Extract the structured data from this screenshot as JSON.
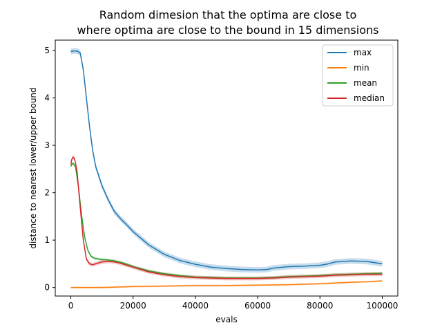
{
  "chart_data": {
    "type": "line",
    "title_line1": "Random dimesion that the optima are close to",
    "title_line2": "where optima are close to the bound in 15 dimensions",
    "xlabel": "evals",
    "ylabel": "distance to nearest lower/upper bound",
    "xlim": [
      -5000,
      105000
    ],
    "ylim": [
      -0.18,
      5.22
    ],
    "x_ticks": [
      0,
      20000,
      40000,
      60000,
      80000,
      100000
    ],
    "x_tick_labels": [
      "0",
      "20000",
      "40000",
      "60000",
      "80000",
      "100000"
    ],
    "y_ticks": [
      0,
      1,
      2,
      3,
      4,
      5
    ],
    "y_tick_labels": [
      "0",
      "1",
      "2",
      "3",
      "4",
      "5"
    ],
    "grid": false,
    "legend_position": "top-right",
    "series": [
      {
        "name": "max",
        "color": "#1f77b4",
        "band": 0.06,
        "points": [
          [
            0,
            4.98
          ],
          [
            1000,
            4.99
          ],
          [
            2000,
            4.99
          ],
          [
            3000,
            4.95
          ],
          [
            4000,
            4.6
          ],
          [
            5000,
            4.0
          ],
          [
            6000,
            3.4
          ],
          [
            7000,
            2.9
          ],
          [
            8000,
            2.55
          ],
          [
            10000,
            2.15
          ],
          [
            12000,
            1.85
          ],
          [
            14000,
            1.6
          ],
          [
            16000,
            1.45
          ],
          [
            18000,
            1.32
          ],
          [
            20000,
            1.18
          ],
          [
            25000,
            0.9
          ],
          [
            30000,
            0.7
          ],
          [
            35000,
            0.57
          ],
          [
            40000,
            0.49
          ],
          [
            45000,
            0.43
          ],
          [
            50000,
            0.4
          ],
          [
            55000,
            0.38
          ],
          [
            60000,
            0.37
          ],
          [
            63000,
            0.38
          ],
          [
            65000,
            0.41
          ],
          [
            70000,
            0.44
          ],
          [
            75000,
            0.45
          ],
          [
            80000,
            0.47
          ],
          [
            82000,
            0.49
          ],
          [
            85000,
            0.54
          ],
          [
            90000,
            0.56
          ],
          [
            95000,
            0.55
          ],
          [
            100000,
            0.5
          ]
        ]
      },
      {
        "name": "min",
        "color": "#ff7f0e",
        "band": 0.02,
        "points": [
          [
            0,
            0.0
          ],
          [
            10000,
            0.0
          ],
          [
            15000,
            0.01
          ],
          [
            20000,
            0.02
          ],
          [
            30000,
            0.03
          ],
          [
            40000,
            0.04
          ],
          [
            50000,
            0.04
          ],
          [
            60000,
            0.05
          ],
          [
            70000,
            0.06
          ],
          [
            80000,
            0.08
          ],
          [
            90000,
            0.11
          ],
          [
            95000,
            0.12
          ],
          [
            100000,
            0.14
          ]
        ]
      },
      {
        "name": "mean",
        "color": "#2ca02c",
        "band": 0.03,
        "points": [
          [
            0,
            2.55
          ],
          [
            300,
            2.6
          ],
          [
            700,
            2.62
          ],
          [
            1500,
            2.55
          ],
          [
            2500,
            2.1
          ],
          [
            3500,
            1.5
          ],
          [
            4500,
            1.05
          ],
          [
            5500,
            0.78
          ],
          [
            6500,
            0.66
          ],
          [
            7500,
            0.62
          ],
          [
            9000,
            0.6
          ],
          [
            10000,
            0.59
          ],
          [
            12000,
            0.58
          ],
          [
            14000,
            0.56
          ],
          [
            16000,
            0.53
          ],
          [
            18000,
            0.49
          ],
          [
            20000,
            0.44
          ],
          [
            25000,
            0.35
          ],
          [
            30000,
            0.29
          ],
          [
            35000,
            0.25
          ],
          [
            40000,
            0.22
          ],
          [
            45000,
            0.21
          ],
          [
            50000,
            0.2
          ],
          [
            55000,
            0.2
          ],
          [
            60000,
            0.2
          ],
          [
            65000,
            0.21
          ],
          [
            70000,
            0.23
          ],
          [
            75000,
            0.24
          ],
          [
            80000,
            0.25
          ],
          [
            85000,
            0.27
          ],
          [
            90000,
            0.28
          ],
          [
            95000,
            0.29
          ],
          [
            100000,
            0.3
          ]
        ]
      },
      {
        "name": "median",
        "color": "#d62728",
        "band": 0.04,
        "points": [
          [
            0,
            2.6
          ],
          [
            300,
            2.7
          ],
          [
            700,
            2.75
          ],
          [
            1200,
            2.72
          ],
          [
            2000,
            2.45
          ],
          [
            3000,
            1.7
          ],
          [
            4000,
            1.0
          ],
          [
            5000,
            0.6
          ],
          [
            6000,
            0.5
          ],
          [
            7000,
            0.48
          ],
          [
            8000,
            0.5
          ],
          [
            9000,
            0.52
          ],
          [
            10000,
            0.54
          ],
          [
            12000,
            0.55
          ],
          [
            14000,
            0.54
          ],
          [
            16000,
            0.51
          ],
          [
            18000,
            0.47
          ],
          [
            20000,
            0.43
          ],
          [
            25000,
            0.33
          ],
          [
            30000,
            0.27
          ],
          [
            35000,
            0.23
          ],
          [
            40000,
            0.21
          ],
          [
            45000,
            0.2
          ],
          [
            50000,
            0.19
          ],
          [
            55000,
            0.19
          ],
          [
            60000,
            0.19
          ],
          [
            65000,
            0.2
          ],
          [
            70000,
            0.22
          ],
          [
            75000,
            0.23
          ],
          [
            80000,
            0.24
          ],
          [
            85000,
            0.26
          ],
          [
            90000,
            0.27
          ],
          [
            95000,
            0.28
          ],
          [
            100000,
            0.28
          ]
        ]
      }
    ]
  }
}
